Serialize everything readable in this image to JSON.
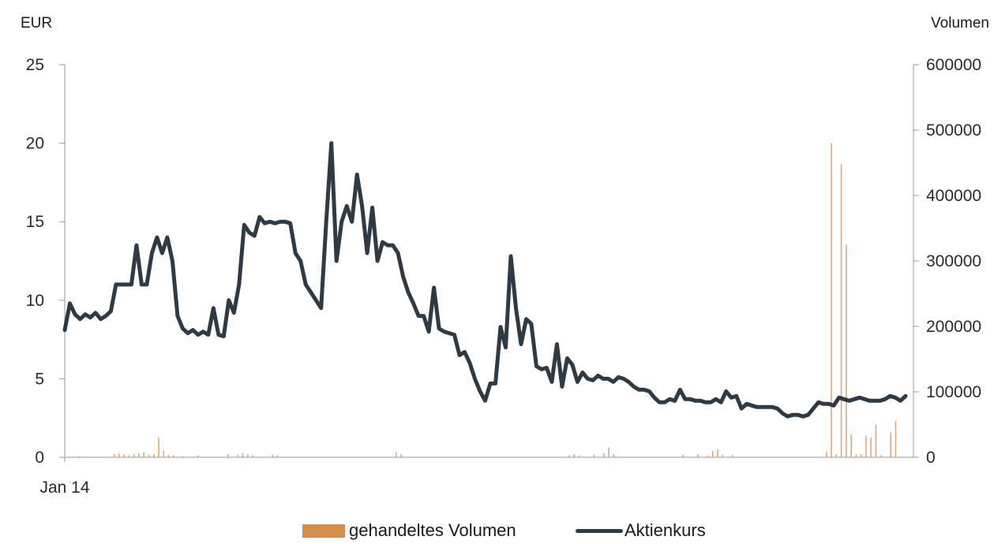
{
  "chart_data": {
    "type": "line",
    "left_axis_unit": "EUR",
    "right_axis_unit": "Volumen",
    "x_start_label": "Jan 14",
    "y_left": {
      "range": [
        0,
        25
      ],
      "ticks": [
        "0",
        "5",
        "10",
        "15",
        "20",
        "25"
      ]
    },
    "y_right": {
      "range": [
        0,
        600000
      ],
      "ticks": [
        "0",
        "100000",
        "200000",
        "300000",
        "400000",
        "500000",
        "600000"
      ]
    },
    "legend_position": "bottom",
    "colors": {
      "price": "#2e3b44",
      "volume": "#d98c4a"
    },
    "series": [
      {
        "name": "Aktienkurs",
        "axis": "left",
        "style": "line",
        "values": [
          8.1,
          9.8,
          9.1,
          8.8,
          9.1,
          8.9,
          9.2,
          8.8,
          9.0,
          9.3,
          11.0,
          11.0,
          11.0,
          11.0,
          13.5,
          11.0,
          11.0,
          13.0,
          14.0,
          13.0,
          14.0,
          12.5,
          9.0,
          8.2,
          7.9,
          8.1,
          7.8,
          8.0,
          7.8,
          9.5,
          7.8,
          7.7,
          10.0,
          9.2,
          11.0,
          14.8,
          14.3,
          14.1,
          15.3,
          14.9,
          15.0,
          14.9,
          15.0,
          15.0,
          14.9,
          13.0,
          12.5,
          11.0,
          10.5,
          10.0,
          9.5,
          15.0,
          20.0,
          12.5,
          15.0,
          16.0,
          15.0,
          18.0,
          16.0,
          13.0,
          15.9,
          12.5,
          13.7,
          13.5,
          13.5,
          13.0,
          11.5,
          10.5,
          9.8,
          9.0,
          9.0,
          8.0,
          10.8,
          8.2,
          8.0,
          7.9,
          7.8,
          6.5,
          6.7,
          6.0,
          5.0,
          4.2,
          3.6,
          4.7,
          4.7,
          8.3,
          7.0,
          12.8,
          9.5,
          7.2,
          8.8,
          8.5,
          5.8,
          5.6,
          5.7,
          4.8,
          7.2,
          4.5,
          6.3,
          5.9,
          4.8,
          5.4,
          5.0,
          4.9,
          5.2,
          5.0,
          5.0,
          4.8,
          5.1,
          5.0,
          4.8,
          4.5,
          4.3,
          4.3,
          4.2,
          3.8,
          3.5,
          3.5,
          3.7,
          3.6,
          4.3,
          3.7,
          3.7,
          3.6,
          3.6,
          3.5,
          3.5,
          3.7,
          3.5,
          4.2,
          3.8,
          3.9,
          3.1,
          3.4,
          3.3,
          3.2,
          3.2,
          3.2,
          3.2,
          3.1,
          2.8,
          2.6,
          2.7,
          2.7,
          2.6,
          2.7,
          3.1,
          3.5,
          3.4,
          3.4,
          3.3,
          3.8,
          3.7,
          3.6,
          3.7,
          3.8,
          3.7,
          3.6,
          3.6,
          3.6,
          3.7,
          3.9,
          3.8,
          3.6,
          3.9
        ]
      },
      {
        "name": "gehandeltes Volumen",
        "axis": "right",
        "style": "bar",
        "values": [
          0,
          0,
          0,
          2000,
          0,
          0,
          0,
          0,
          0,
          1000,
          5000,
          6000,
          4000,
          3000,
          5000,
          6000,
          8000,
          4000,
          5000,
          30000,
          10000,
          4000,
          3000,
          0,
          2000,
          0,
          0,
          3000,
          0,
          0,
          0,
          0,
          0,
          5000,
          0,
          4000,
          6000,
          5000,
          3000,
          0,
          0,
          0,
          4000,
          3000,
          0,
          0,
          0,
          0,
          0,
          0,
          0,
          0,
          0,
          0,
          0,
          0,
          0,
          0,
          0,
          0,
          0,
          0,
          0,
          0,
          0,
          0,
          0,
          8000,
          5000,
          0,
          0,
          0,
          0,
          0,
          0,
          0,
          0,
          0,
          0,
          0,
          0,
          0,
          0,
          0,
          0,
          0,
          0,
          0,
          0,
          0,
          0,
          0,
          0,
          0,
          0,
          0,
          0,
          0,
          0,
          0,
          0,
          0,
          3000,
          5000,
          3000,
          0,
          0,
          4000,
          0,
          6000,
          15000,
          5000,
          0,
          0,
          0,
          0,
          0,
          0,
          0,
          0,
          0,
          0,
          0,
          0,
          0,
          4000,
          0,
          0,
          5000,
          0,
          3000,
          10000,
          12000,
          4000,
          0,
          4000,
          0,
          0,
          0,
          0,
          0,
          0,
          0,
          0,
          0,
          0,
          0,
          0,
          0,
          0,
          0,
          0,
          0,
          0,
          8000,
          480000,
          5000,
          448000,
          325000,
          35000,
          5000,
          5000,
          33000,
          30000,
          50000,
          3000,
          0,
          38000,
          55000,
          0,
          0
        ]
      }
    ]
  }
}
